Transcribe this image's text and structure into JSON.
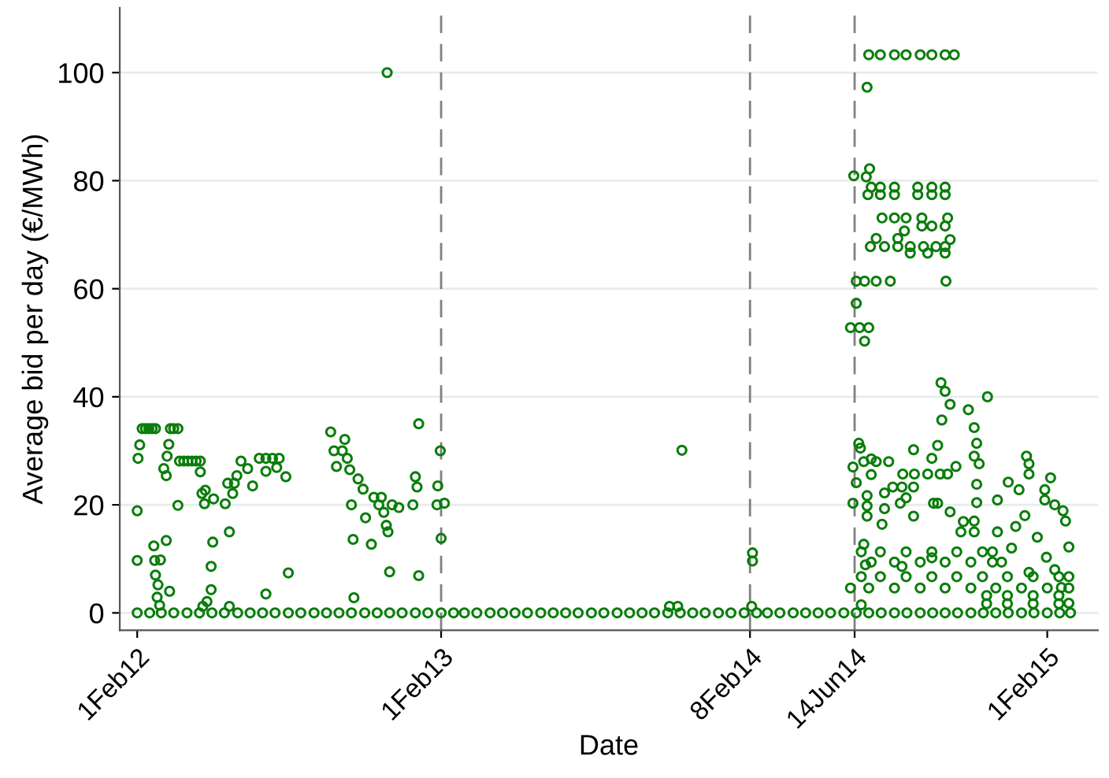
{
  "chart_data": {
    "type": "scatter",
    "xlabel": "Date",
    "ylabel": "Average bid per day (€/MWh)",
    "xlim": [
      "2012-01-11",
      "2015-04-03"
    ],
    "ylim": [
      -3.2,
      112
    ],
    "xticks": [
      {
        "value": "2012-02-01",
        "label": "1Feb12"
      },
      {
        "value": "2013-02-01",
        "label": "1Feb13"
      },
      {
        "value": "2014-02-08",
        "label": "8Feb14"
      },
      {
        "value": "2014-06-14",
        "label": "14Jun14"
      },
      {
        "value": "2015-02-01",
        "label": "1Feb15"
      }
    ],
    "yticks": [
      0,
      20,
      40,
      60,
      80,
      100
    ],
    "grid": "y",
    "marker": "circle",
    "legend": false,
    "ref_lines": [
      {
        "axis": "x",
        "value": "2013-02-01",
        "color": "#808080",
        "line_style": "dashed"
      },
      {
        "axis": "x",
        "value": "2014-02-08",
        "color": "#808080",
        "line_style": "dashed"
      },
      {
        "axis": "x",
        "value": "2014-06-14",
        "color": "#808080",
        "line_style": "dashed"
      }
    ],
    "series": [
      {
        "color": "#0a7d0a",
        "x": [
          "2012-02-01",
          "2012-02-16",
          "2012-03-01",
          "2012-03-16",
          "2012-04-01",
          "2012-04-16",
          "2012-05-01",
          "2012-05-16",
          "2012-06-01",
          "2012-06-16",
          "2012-07-01",
          "2012-07-16",
          "2012-08-01",
          "2012-08-16",
          "2012-09-01",
          "2012-09-16",
          "2012-10-01",
          "2012-10-16",
          "2012-11-01",
          "2012-11-16",
          "2012-12-01",
          "2012-12-16",
          "2013-01-01",
          "2013-01-16",
          "2013-02-01",
          "2013-02-16",
          "2013-03-01",
          "2013-03-16",
          "2013-04-01",
          "2013-04-16",
          "2013-05-01",
          "2013-05-16",
          "2013-06-01",
          "2013-06-16",
          "2013-07-01",
          "2013-07-16",
          "2013-08-01",
          "2013-08-16",
          "2013-09-01",
          "2013-09-16",
          "2013-10-01",
          "2013-10-16",
          "2013-11-01",
          "2013-11-16",
          "2013-12-01",
          "2013-12-16",
          "2014-01-01",
          "2014-01-16",
          "2014-02-01",
          "2014-02-16",
          "2014-03-01",
          "2014-03-16",
          "2014-04-01",
          "2014-04-16",
          "2014-05-01",
          "2014-05-16",
          "2014-06-01",
          "2014-06-16",
          "2014-07-01",
          "2014-07-16",
          "2014-08-01",
          "2014-08-16",
          "2014-09-01",
          "2014-09-16",
          "2014-10-01",
          "2014-10-16",
          "2014-11-01",
          "2014-11-16",
          "2014-12-01",
          "2014-12-16",
          "2015-01-01",
          "2015-01-16",
          "2015-02-01",
          "2015-02-16",
          "2015-03-01"
        ],
        "values": [
          0,
          0,
          0,
          0,
          0,
          0,
          0,
          0,
          0,
          0,
          0,
          0,
          0,
          0,
          0,
          0,
          0,
          0,
          0,
          0,
          0,
          0,
          0,
          0,
          0,
          0,
          0,
          0,
          0,
          0,
          0,
          0,
          0,
          0,
          0,
          0,
          0,
          0,
          0,
          0,
          0,
          0,
          0,
          0,
          0,
          0,
          0,
          0,
          0,
          0,
          0,
          0,
          0,
          0,
          0,
          0,
          0,
          0,
          0,
          0,
          0,
          0,
          0,
          0,
          0,
          0,
          0,
          0,
          0,
          0,
          0,
          0,
          0,
          0,
          0
        ]
      },
      {
        "color": "#0a7d0a",
        "x": [
          "2012-02-01",
          "2012-02-01",
          "2012-02-02",
          "2012-02-04",
          "2012-02-07",
          "2012-02-11",
          "2012-02-15",
          "2012-02-19",
          "2012-02-23",
          "2012-02-21",
          "2012-02-22",
          "2012-02-23",
          "2012-02-26",
          "2012-02-29",
          "2012-02-25",
          "2012-02-28",
          "2012-03-10",
          "2012-03-08",
          "2012-03-04",
          "2012-03-07",
          "2012-03-12",
          "2012-03-16",
          "2012-03-21",
          "2012-03-07",
          "2012-03-11",
          "2012-03-21",
          "2012-03-23",
          "2012-03-28",
          "2012-04-02",
          "2012-04-07",
          "2012-04-12",
          "2012-04-17",
          "2012-04-17",
          "2012-04-19",
          "2012-04-23",
          "2012-04-22",
          "2012-05-03",
          "2012-05-02",
          "2012-04-30",
          "2012-04-30",
          "2012-04-25",
          "2012-04-20",
          "2012-05-17",
          "2012-05-20",
          "2012-05-22",
          "2012-05-22",
          "2012-05-26",
          "2012-05-28",
          "2012-05-31",
          "2012-06-05",
          "2012-06-13",
          "2012-06-19",
          "2012-06-27",
          "2012-07-05",
          "2012-07-13",
          "2012-07-21",
          "2012-07-05",
          "2012-07-05",
          "2012-07-18",
          "2012-07-29",
          "2012-08-01",
          "2012-11-28",
          "2012-09-21",
          "2012-09-25",
          "2012-10-05",
          "2012-09-28",
          "2012-10-08",
          "2012-10-11",
          "2012-10-14",
          "2012-10-16",
          "2012-10-18",
          "2012-10-19",
          "2012-10-24",
          "2012-10-30",
          "2012-11-02",
          "2012-11-09",
          "2012-11-12",
          "2012-11-18",
          "2012-11-21",
          "2012-11-24",
          "2012-11-27",
          "2012-11-29",
          "2012-12-01",
          "2012-12-04",
          "2012-12-12",
          "2012-12-29",
          "2013-01-01",
          "2013-01-03",
          "2013-01-05",
          "2013-01-05",
          "2013-01-28",
          "2013-01-31",
          "2013-02-01",
          "2013-01-27",
          "2013-02-05",
          "2013-11-03",
          "2013-11-13",
          "2013-11-18",
          "2014-02-11",
          "2014-02-11",
          "2014-02-10"
        ],
        "values": [
          9.7,
          18.9,
          28.6,
          31.1,
          34.1,
          34.1,
          34.1,
          34.1,
          34.1,
          12.4,
          9.7,
          7.0,
          5.2,
          9.8,
          2.9,
          1.4,
          31.2,
          29.0,
          26.7,
          25.4,
          34.1,
          34.1,
          34.1,
          13.4,
          4.0,
          19.9,
          28.1,
          28.1,
          28.1,
          28.1,
          28.1,
          28.1,
          26.1,
          22.1,
          22.7,
          20.2,
          21.1,
          13.1,
          8.6,
          4.3,
          2.1,
          1.2,
          20.2,
          24.0,
          15.0,
          1.2,
          22.1,
          24.0,
          25.4,
          28.1,
          26.7,
          23.5,
          28.6,
          28.6,
          28.6,
          28.6,
          26.2,
          3.5,
          26.9,
          25.2,
          7.4,
          100,
          33.5,
          30.0,
          30.0,
          27.1,
          32.1,
          28.6,
          26.5,
          20.0,
          13.6,
          2.8,
          24.8,
          22.9,
          17.6,
          12.7,
          21.4,
          20.0,
          21.4,
          18.6,
          16.2,
          15.0,
          7.6,
          20.0,
          19.5,
          20.0,
          25.2,
          23.3,
          35.0,
          6.9,
          23.5,
          30.0,
          13.8,
          20.0,
          20.3,
          1.2,
          1.2,
          30.1,
          11.1,
          9.6,
          1.2
        ]
      },
      {
        "color": "#0a7d0a",
        "x": [
          "2014-07-01",
          "2014-07-15",
          "2014-08-01",
          "2014-08-15",
          "2014-09-01",
          "2014-09-15",
          "2014-10-01",
          "2014-10-12",
          "2014-06-29",
          "2014-07-02",
          "2014-06-28",
          "2014-06-13",
          "2014-07-04",
          "2014-07-15",
          "2014-08-01",
          "2014-08-29",
          "2014-09-15",
          "2014-10-01",
          "2014-06-30",
          "2014-07-15",
          "2014-08-01",
          "2014-08-29",
          "2014-09-15",
          "2014-10-01",
          "2014-07-17",
          "2014-08-01",
          "2014-08-15",
          "2014-09-03",
          "2014-10-04",
          "2014-09-03",
          "2014-09-15",
          "2014-10-01",
          "2014-08-13",
          "2014-08-05",
          "2014-07-10",
          "2014-10-07",
          "2014-07-03",
          "2014-07-20",
          "2014-08-05",
          "2014-08-20",
          "2014-09-05",
          "2014-09-20",
          "2014-10-01",
          "2014-08-20",
          "2014-09-10",
          "2014-10-01",
          "2014-10-02",
          "2014-06-16",
          "2014-06-26",
          "2014-07-10",
          "2014-07-27",
          "2014-06-16",
          "2014-06-09",
          "2014-06-20",
          "2014-07-01",
          "2014-06-26",
          "2014-09-26",
          "2014-10-01",
          "2014-10-07",
          "2014-11-21",
          "2014-09-27",
          "2014-10-29",
          "2014-11-05",
          "2014-11-08",
          "2014-06-19",
          "2014-06-21",
          "2014-07-04",
          "2014-08-24",
          "2014-06-25",
          "2014-07-10",
          "2014-07-25",
          "2014-08-11",
          "2014-08-25",
          "2014-09-10",
          "2014-09-25",
          "2014-10-04",
          "2014-06-12",
          "2014-06-16",
          "2014-06-12",
          "2014-07-04",
          "2014-06-29",
          "2014-06-29",
          "2014-06-29",
          "2014-07-20",
          "2014-07-20",
          "2014-07-17",
          "2014-07-30",
          "2014-08-10",
          "2014-08-24",
          "2014-08-15",
          "2014-08-24",
          "2014-08-08",
          "2014-09-22",
          "2014-10-07",
          "2014-10-23",
          "2014-10-20",
          "2014-09-22",
          "2014-09-15",
          "2014-10-14",
          "2014-11-05",
          "2014-11-11",
          "2014-11-08",
          "2014-11-08",
          "2014-11-05",
          "2014-11-05",
          "2015-01-07",
          "2015-01-10",
          "2015-01-29",
          "2015-01-10",
          "2014-12-16",
          "2014-12-03",
          "2014-12-29",
          "2015-01-29",
          "2015-02-20",
          "2015-02-23",
          "2014-12-03",
          "2015-02-27",
          "2015-01-31",
          "2014-12-08",
          "2015-01-10",
          "2015-02-18",
          "2015-02-27",
          "2015-01-20",
          "2014-12-20",
          "2015-01-05",
          "2015-02-05",
          "2015-02-10",
          "2015-02-10",
          "2014-12-25",
          "2014-06-22",
          "2014-07-15",
          "2014-08-15",
          "2014-09-15",
          "2014-10-15",
          "2014-11-15",
          "2014-11-27",
          "2014-07-04",
          "2014-08-01",
          "2014-09-01",
          "2014-10-01",
          "2014-11-01",
          "2014-11-27",
          "2014-06-22",
          "2014-07-15",
          "2014-08-15",
          "2014-09-15",
          "2014-10-15",
          "2014-11-15",
          "2014-12-15",
          "2015-01-15",
          "2015-02-15",
          "2015-02-27",
          "2014-06-09",
          "2014-07-01",
          "2014-08-01",
          "2014-09-01",
          "2014-10-01",
          "2014-11-01",
          "2014-12-01",
          "2015-01-01",
          "2015-02-01",
          "2015-02-27",
          "2014-11-20",
          "2014-12-15",
          "2015-01-15",
          "2015-02-15",
          "2014-11-20",
          "2014-12-15",
          "2015-01-15",
          "2015-02-15",
          "2014-06-25",
          "2014-06-27",
          "2014-08-10",
          "2014-09-15",
          "2014-09-17",
          "2014-06-22"
        ],
        "values": [
          103.3,
          103.3,
          103.3,
          103.3,
          103.3,
          103.3,
          103.3,
          103.3,
          97.3,
          82.2,
          80.7,
          80.9,
          78.8,
          78.8,
          78.8,
          78.8,
          78.8,
          78.8,
          77.4,
          77.4,
          77.4,
          77.4,
          77.4,
          77.4,
          73.1,
          73.1,
          73.1,
          73.1,
          73.1,
          71.6,
          71.6,
          71.6,
          70.7,
          69.3,
          69.3,
          69.1,
          67.8,
          67.8,
          67.8,
          67.8,
          67.8,
          67.8,
          67.8,
          66.6,
          66.6,
          66.6,
          61.4,
          61.4,
          61.4,
          61.4,
          61.4,
          57.3,
          52.8,
          52.8,
          52.8,
          50.3,
          42.6,
          41.0,
          38.6,
          40.0,
          35.7,
          37.6,
          34.3,
          31.4,
          31.4,
          30.5,
          28.5,
          30.2,
          28.0,
          28.0,
          28.0,
          25.7,
          25.7,
          25.7,
          25.7,
          25.7,
          27.0,
          24.1,
          20.3,
          25.6,
          21.7,
          19.8,
          17.9,
          22.2,
          19.3,
          16.4,
          23.3,
          23.3,
          23.3,
          21.3,
          17.9,
          20.3,
          20.3,
          18.7,
          16.9,
          15.0,
          31.0,
          28.6,
          27.1,
          29.0,
          27.6,
          23.8,
          20.4,
          17.0,
          15.0,
          29.0,
          27.6,
          22.8,
          25.7,
          24.2,
          20.9,
          22.8,
          20.9,
          18.9,
          17.0,
          15.0,
          12.2,
          10.3,
          9.4,
          7.5,
          4.7,
          1.8,
          14.0,
          12.0,
          18.0,
          25.0,
          20.0,
          8.0,
          16.0,
          11.3,
          11.3,
          11.3,
          11.3,
          11.3,
          11.3,
          11.3,
          9.4,
          9.4,
          9.4,
          9.4,
          9.4,
          9.4,
          6.7,
          6.7,
          6.7,
          6.7,
          6.7,
          6.7,
          6.7,
          6.7,
          6.7,
          6.7,
          4.6,
          4.6,
          4.6,
          4.6,
          4.6,
          4.6,
          4.6,
          4.6,
          4.6,
          4.6,
          3.2,
          3.2,
          3.2,
          3.2,
          1.7,
          1.7,
          1.7,
          1.7,
          12.7,
          8.9,
          8.6,
          10.2,
          20.3,
          1.5
        ]
      }
    ]
  }
}
